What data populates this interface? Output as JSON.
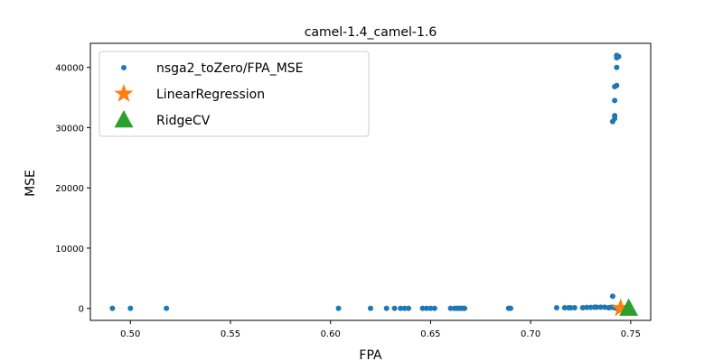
{
  "chart_data": {
    "type": "scatter",
    "title": "camel-1.4_camel-1.6",
    "xlabel": "FPA",
    "ylabel": "MSE",
    "xlim": [
      0.48,
      0.76
    ],
    "ylim": [
      -2000,
      44000
    ],
    "x_ticks": [
      0.5,
      0.55,
      0.6,
      0.65,
      0.7,
      0.75
    ],
    "x_tick_labels": [
      "0.50",
      "0.55",
      "0.60",
      "0.65",
      "0.70",
      "0.75"
    ],
    "y_ticks": [
      0,
      10000,
      20000,
      30000,
      40000
    ],
    "y_tick_labels": [
      "0",
      "10000",
      "20000",
      "30000",
      "40000"
    ],
    "grid": false,
    "legend_position": "top-left",
    "series": [
      {
        "name": "nsga2_toZero/FPA_MSE",
        "marker": "circle",
        "color": "#1f77b4",
        "points": [
          [
            0.491,
            0
          ],
          [
            0.5,
            0
          ],
          [
            0.518,
            0
          ],
          [
            0.604,
            0
          ],
          [
            0.62,
            0
          ],
          [
            0.628,
            0
          ],
          [
            0.632,
            0
          ],
          [
            0.635,
            0
          ],
          [
            0.637,
            0
          ],
          [
            0.639,
            0
          ],
          [
            0.646,
            0
          ],
          [
            0.648,
            0
          ],
          [
            0.65,
            0
          ],
          [
            0.652,
            0
          ],
          [
            0.66,
            0
          ],
          [
            0.662,
            0
          ],
          [
            0.663,
            0
          ],
          [
            0.664,
            0
          ],
          [
            0.665,
            0
          ],
          [
            0.666,
            0
          ],
          [
            0.667,
            0
          ],
          [
            0.689,
            0
          ],
          [
            0.69,
            0
          ],
          [
            0.713,
            100
          ],
          [
            0.717,
            100
          ],
          [
            0.719,
            100
          ],
          [
            0.72,
            100
          ],
          [
            0.722,
            100
          ],
          [
            0.726,
            100
          ],
          [
            0.728,
            150
          ],
          [
            0.73,
            150
          ],
          [
            0.732,
            200
          ],
          [
            0.733,
            200
          ],
          [
            0.735,
            200
          ],
          [
            0.737,
            200
          ],
          [
            0.739,
            100
          ],
          [
            0.74,
            150
          ],
          [
            0.741,
            200
          ],
          [
            0.742,
            100
          ],
          [
            0.743,
            0
          ],
          [
            0.744,
            0
          ],
          [
            0.741,
            2000
          ],
          [
            0.741,
            31000
          ],
          [
            0.742,
            31500
          ],
          [
            0.742,
            32000
          ],
          [
            0.742,
            34500
          ],
          [
            0.742,
            36800
          ],
          [
            0.743,
            37000
          ],
          [
            0.743,
            40000
          ],
          [
            0.743,
            41600
          ],
          [
            0.744,
            41800
          ],
          [
            0.743,
            42000
          ]
        ]
      },
      {
        "name": "LinearRegression",
        "marker": "star",
        "color": "#ff7f0e",
        "points": [
          [
            0.745,
            0
          ]
        ]
      },
      {
        "name": "RidgeCV",
        "marker": "triangle",
        "color": "#2ca02c",
        "points": [
          [
            0.749,
            0
          ]
        ]
      }
    ]
  }
}
